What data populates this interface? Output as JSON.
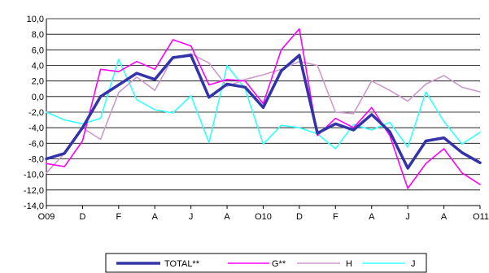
{
  "chart_data": {
    "type": "line",
    "title": "",
    "xlabel": "",
    "ylabel": "",
    "ylim": [
      -14,
      10
    ],
    "yticks": [
      10,
      8,
      6,
      4,
      2,
      0,
      -2,
      -4,
      -6,
      -8,
      -10,
      -12,
      -14
    ],
    "ytick_labels": [
      "10,0",
      "8,0",
      "6,0",
      "4,0",
      "2,0",
      "0,0",
      "-2,0",
      "-4,0",
      "-6,0",
      "-8,0",
      "-10,0",
      "-12,0",
      "-14,0"
    ],
    "x_tick_labels": [
      "O09",
      "D",
      "F",
      "A",
      "J",
      "A",
      "O10",
      "D",
      "F",
      "A",
      "J",
      "A",
      "O11"
    ],
    "grid": "horizontal",
    "legend_position": "bottom",
    "series": [
      {
        "name": "TOTAL**",
        "color": "#3333aa",
        "values": [
          -8.0,
          -7.3,
          -4.0,
          0.0,
          1.5,
          3.0,
          2.2,
          5.0,
          5.3,
          -0.1,
          1.6,
          1.2,
          -1.4,
          3.3,
          5.3,
          -4.7,
          -3.5,
          -4.3,
          -2.3,
          -4.5,
          -9.2,
          -5.7,
          -5.3,
          -7.2,
          -8.5
        ]
      },
      {
        "name": "G**",
        "color": "#ff00ff",
        "values": [
          -8.6,
          -9.0,
          -5.7,
          3.5,
          3.2,
          4.5,
          3.5,
          7.3,
          6.5,
          1.5,
          2.2,
          2.0,
          -0.9,
          6.0,
          8.7,
          -5.0,
          -2.8,
          -4.0,
          -1.4,
          -5.0,
          -11.8,
          -8.6,
          -6.7,
          -9.8,
          -11.3
        ]
      },
      {
        "name": "H",
        "color": "#cc99cc",
        "values": [
          -9.8,
          -7.3,
          -4.0,
          -5.5,
          0.5,
          2.5,
          0.8,
          5.0,
          5.5,
          4.3,
          1.3,
          2.2,
          2.8,
          3.5,
          4.5,
          4.0,
          -2.0,
          -2.2,
          2.0,
          0.8,
          -0.6,
          1.6,
          2.7,
          1.2,
          0.6
        ]
      },
      {
        "name": "J",
        "color": "#33ffff",
        "values": [
          -2.0,
          -3.0,
          -3.5,
          -2.8,
          4.8,
          -0.4,
          -1.7,
          -2.1,
          0.1,
          -5.9,
          4.0,
          1.0,
          -6.1,
          -3.7,
          -4.0,
          -4.8,
          -6.7,
          -3.6,
          -4.3,
          -3.3,
          -6.5,
          0.6,
          -3.2,
          -6.1,
          -4.6
        ]
      }
    ]
  }
}
